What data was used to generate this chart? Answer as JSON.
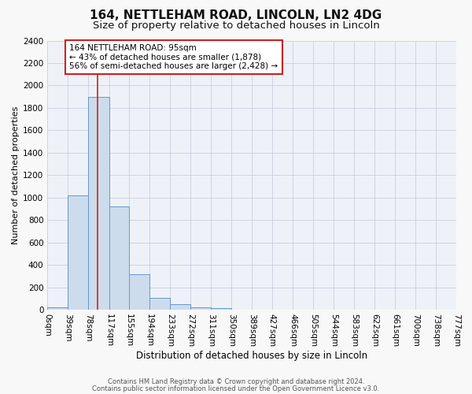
{
  "title": "164, NETTLEHAM ROAD, LINCOLN, LN2 4DG",
  "subtitle": "Size of property relative to detached houses in Lincoln",
  "xlabel": "Distribution of detached houses by size in Lincoln",
  "ylabel": "Number of detached properties",
  "bar_values": [
    20,
    1020,
    1900,
    920,
    320,
    105,
    50,
    25,
    15,
    0,
    0,
    0,
    0,
    0,
    0,
    0,
    0,
    0,
    0,
    0
  ],
  "bin_edges": [
    0,
    39,
    78,
    117,
    155,
    194,
    233,
    272,
    311,
    350,
    389,
    427,
    466,
    505,
    544,
    583,
    622,
    661,
    700,
    738,
    777
  ],
  "bin_labels": [
    "0sqm",
    "39sqm",
    "78sqm",
    "117sqm",
    "155sqm",
    "194sqm",
    "233sqm",
    "272sqm",
    "311sqm",
    "350sqm",
    "389sqm",
    "427sqm",
    "466sqm",
    "505sqm",
    "544sqm",
    "583sqm",
    "622sqm",
    "661sqm",
    "700sqm",
    "738sqm",
    "777sqm"
  ],
  "bar_color": "#ccdcec",
  "bar_edge_color": "#6699cc",
  "red_line_x": 95,
  "ylim": [
    0,
    2400
  ],
  "yticks": [
    0,
    200,
    400,
    600,
    800,
    1000,
    1200,
    1400,
    1600,
    1800,
    2000,
    2200,
    2400
  ],
  "annotation_title": "164 NETTLEHAM ROAD: 95sqm",
  "annotation_line1": "← 43% of detached houses are smaller (1,878)",
  "annotation_line2": "56% of semi-detached houses are larger (2,428) →",
  "annotation_box_facecolor": "#ffffff",
  "annotation_box_edgecolor": "#cc2222",
  "plot_bg_color": "#eef2f8",
  "fig_bg_color": "#f8f8f8",
  "grid_color": "#ccccdd",
  "title_fontsize": 11,
  "subtitle_fontsize": 9.5,
  "xlabel_fontsize": 8.5,
  "ylabel_fontsize": 8,
  "tick_fontsize": 7.5,
  "footnote1": "Contains HM Land Registry data © Crown copyright and database right 2024.",
  "footnote2": "Contains public sector information licensed under the Open Government Licence v3.0.",
  "footnote_fontsize": 6
}
